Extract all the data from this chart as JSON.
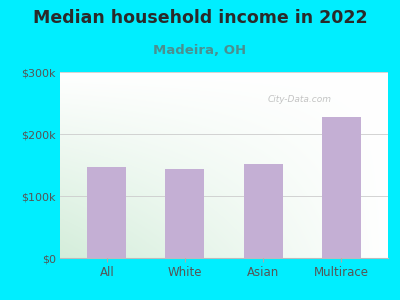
{
  "title": "Median household income in 2022",
  "subtitle": "Madeira, OH",
  "categories": [
    "All",
    "White",
    "Asian",
    "Multirace"
  ],
  "values": [
    147000,
    143000,
    152000,
    228000
  ],
  "bar_color": "#c4afd4",
  "title_color": "#2a2a2a",
  "subtitle_color": "#4a9090",
  "outer_bg": "#00eeff",
  "plot_bg_topleft": "#e8f5e9",
  "plot_bg_botleft": "#d0ecd8",
  "plot_bg_topright": "#ffffff",
  "plot_bg_botright": "#f0f8f0",
  "ylim": [
    0,
    300000
  ],
  "yticks": [
    0,
    100000,
    200000,
    300000
  ],
  "ytick_labels": [
    "$0",
    "$100k",
    "$200k",
    "$300k"
  ],
  "watermark": "City-Data.com",
  "title_fontsize": 12.5,
  "subtitle_fontsize": 9.5
}
